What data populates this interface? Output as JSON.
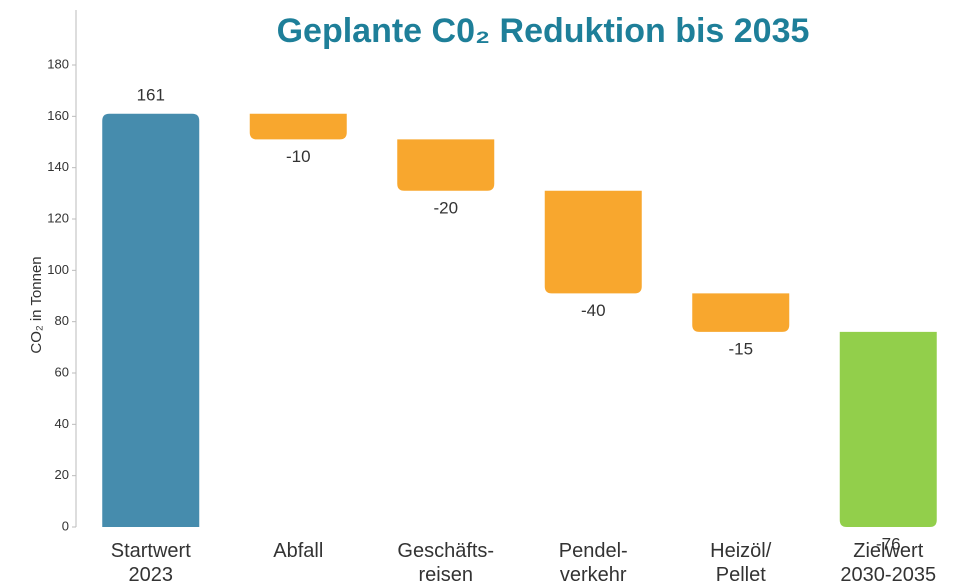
{
  "chart_data": {
    "type": "waterfall",
    "title": "Geplante C0₂ Reduktion bis 2035",
    "y_label": "CO₂ in Tonnen",
    "categories": [
      "Startwert\n2023",
      "Abfall",
      "Geschäfts-\nreisen",
      "Pendel-\nverkehr",
      "Heizöl/\nPellet",
      "Zielwert\n2030-2035"
    ],
    "values": [
      161,
      -10,
      -20,
      -40,
      -15,
      -76
    ],
    "colors": [
      "#468cad",
      "#f8a72e",
      "#f8a72e",
      "#f8a72e",
      "#f8a72e",
      "#92cf4b"
    ],
    "ylim": [
      0,
      180
    ],
    "yticks": [
      0,
      20,
      40,
      60,
      80,
      100,
      120,
      140,
      160,
      180
    ],
    "grid": false
  }
}
